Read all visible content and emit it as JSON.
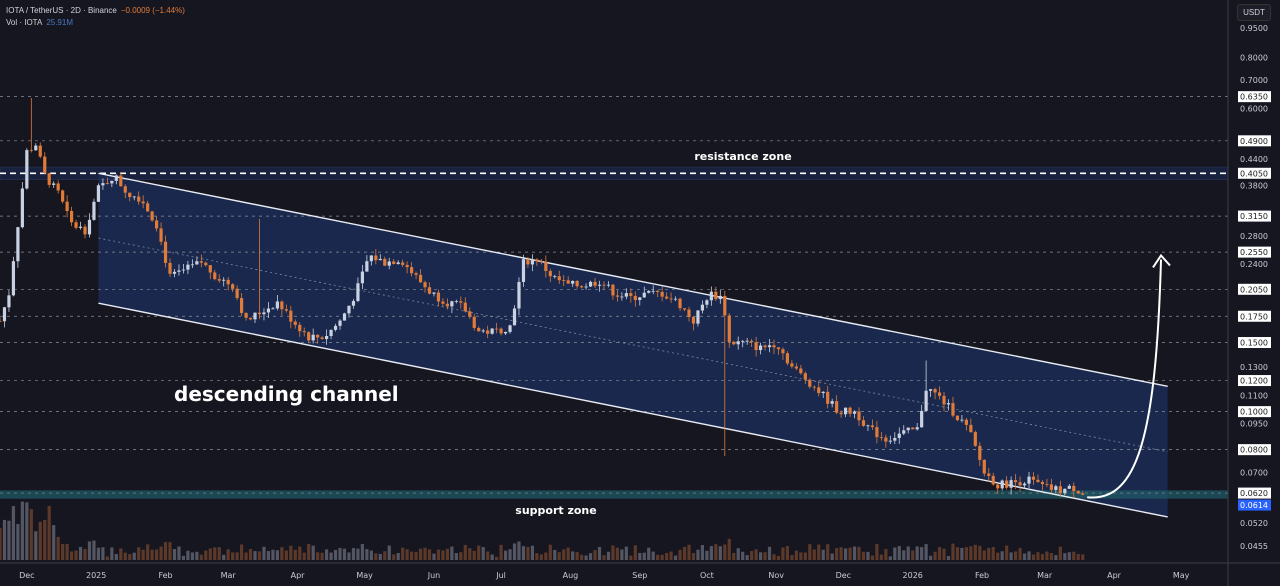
{
  "header": {
    "symbol": "IOTA / TetherUS · 2D · Binance",
    "change": "−0.0009 (−1.44%)",
    "volume_label": "Vol · IOTA",
    "volume_value": "25.91M"
  },
  "currency_button": "USDT",
  "colors": {
    "background": "#161620",
    "up": "#c9d2e3",
    "down": "#e07b39",
    "channel_fill": "#1a2b55",
    "support_fill": "#1f5a66",
    "price_tag": "#2962ff"
  },
  "chart_data": {
    "type": "candlestick",
    "interval": "2D",
    "y_scale": "log",
    "ylim": [
      0.042,
      1.0
    ],
    "y_ticks": [
      "0.9500",
      "0.8000",
      "0.7000",
      "0.6000",
      "0.4400",
      "0.3800",
      "0.2800",
      "0.2400",
      "0.1300",
      "0.1100",
      "0.0950",
      "0.0700",
      "0.0520",
      "0.0455"
    ],
    "level_tags": [
      "0.6350",
      "0.4900",
      "0.4050",
      "0.3150",
      "0.2550",
      "0.2050",
      "0.1750",
      "0.1500",
      "0.1200",
      "0.1000",
      "0.0800",
      "0.0620"
    ],
    "last_price": "0.0614",
    "x_ticks": [
      {
        "label": "Dec",
        "date": "2024-12-01"
      },
      {
        "label": "2025",
        "date": "2025-01-01"
      },
      {
        "label": "Feb",
        "date": "2025-02-01"
      },
      {
        "label": "Mar",
        "date": "2025-03-01"
      },
      {
        "label": "Apr",
        "date": "2025-04-01"
      },
      {
        "label": "May",
        "date": "2025-05-01"
      },
      {
        "label": "Jun",
        "date": "2025-06-01"
      },
      {
        "label": "Jul",
        "date": "2025-07-01"
      },
      {
        "label": "Aug",
        "date": "2025-08-01"
      },
      {
        "label": "Sep",
        "date": "2025-09-01"
      },
      {
        "label": "Oct",
        "date": "2025-10-01"
      },
      {
        "label": "Nov",
        "date": "2025-11-01"
      },
      {
        "label": "Dec",
        "date": "2025-12-01"
      },
      {
        "label": "2026",
        "date": "2026-01-01"
      },
      {
        "label": "Feb",
        "date": "2026-02-01"
      },
      {
        "label": "Mar",
        "date": "2026-03-01"
      },
      {
        "label": "Apr",
        "date": "2026-04-01"
      },
      {
        "label": "May",
        "date": "2026-05-01"
      }
    ],
    "close_path": [
      [
        "2024-11-19",
        0.17
      ],
      [
        "2024-11-23",
        0.2
      ],
      [
        "2024-11-27",
        0.3
      ],
      [
        "2024-12-01",
        0.46
      ],
      [
        "2024-12-05",
        0.48
      ],
      [
        "2024-12-09",
        0.4
      ],
      [
        "2024-12-15",
        0.36
      ],
      [
        "2024-12-21",
        0.3
      ],
      [
        "2024-12-27",
        0.29
      ],
      [
        "2025-01-02",
        0.37
      ],
      [
        "2025-01-09",
        0.4
      ],
      [
        "2025-01-15",
        0.36
      ],
      [
        "2025-01-21",
        0.35
      ],
      [
        "2025-01-28",
        0.3
      ],
      [
        "2025-02-03",
        0.22
      ],
      [
        "2025-02-10",
        0.23
      ],
      [
        "2025-02-17",
        0.24
      ],
      [
        "2025-02-24",
        0.22
      ],
      [
        "2025-03-03",
        0.21
      ],
      [
        "2025-03-09",
        0.17
      ],
      [
        "2025-03-16",
        0.18
      ],
      [
        "2025-03-23",
        0.19
      ],
      [
        "2025-03-30",
        0.17
      ],
      [
        "2025-04-06",
        0.155
      ],
      [
        "2025-04-13",
        0.155
      ],
      [
        "2025-04-20",
        0.17
      ],
      [
        "2025-04-27",
        0.2
      ],
      [
        "2025-05-03",
        0.25
      ],
      [
        "2025-05-10",
        0.24
      ],
      [
        "2025-05-17",
        0.245
      ],
      [
        "2025-05-24",
        0.22
      ],
      [
        "2025-05-31",
        0.2
      ],
      [
        "2025-06-07",
        0.19
      ],
      [
        "2025-06-14",
        0.185
      ],
      [
        "2025-06-21",
        0.16
      ],
      [
        "2025-06-28",
        0.16
      ],
      [
        "2025-07-05",
        0.165
      ],
      [
        "2025-07-11",
        0.24
      ],
      [
        "2025-07-17",
        0.245
      ],
      [
        "2025-07-24",
        0.22
      ],
      [
        "2025-07-31",
        0.21
      ],
      [
        "2025-08-07",
        0.21
      ],
      [
        "2025-08-14",
        0.215
      ],
      [
        "2025-08-21",
        0.2
      ],
      [
        "2025-08-28",
        0.195
      ],
      [
        "2025-09-04",
        0.2
      ],
      [
        "2025-09-11",
        0.2
      ],
      [
        "2025-09-18",
        0.19
      ],
      [
        "2025-09-25",
        0.17
      ],
      [
        "2025-10-02",
        0.2
      ],
      [
        "2025-10-08",
        0.195
      ],
      [
        "2025-10-11",
        0.15
      ],
      [
        "2025-10-18",
        0.15
      ],
      [
        "2025-10-25",
        0.145
      ],
      [
        "2025-11-01",
        0.15
      ],
      [
        "2025-11-08",
        0.13
      ],
      [
        "2025-11-15",
        0.12
      ],
      [
        "2025-11-22",
        0.11
      ],
      [
        "2025-11-29",
        0.1
      ],
      [
        "2025-12-06",
        0.1
      ],
      [
        "2025-12-13",
        0.09
      ],
      [
        "2025-12-20",
        0.085
      ],
      [
        "2025-12-27",
        0.088
      ],
      [
        "2026-01-03",
        0.09
      ],
      [
        "2026-01-07",
        0.115
      ],
      [
        "2026-01-12",
        0.11
      ],
      [
        "2026-01-19",
        0.1
      ],
      [
        "2026-01-26",
        0.09
      ],
      [
        "2026-02-02",
        0.07
      ],
      [
        "2026-02-08",
        0.065
      ],
      [
        "2026-02-15",
        0.066
      ],
      [
        "2026-02-22",
        0.067
      ],
      [
        "2026-03-01",
        0.064
      ],
      [
        "2026-03-08",
        0.063
      ],
      [
        "2026-03-15",
        0.064
      ],
      [
        "2026-03-18",
        0.0614
      ]
    ],
    "notable_wicks": [
      [
        "2024-12-03",
        0.63
      ],
      [
        "2025-03-15",
        0.31
      ],
      [
        "2025-10-10",
        0.077
      ],
      [
        "2026-01-08",
        0.135
      ]
    ],
    "channel": {
      "upper": [
        [
          "2025-01-02",
          0.405
        ],
        [
          "2026-04-25",
          0.116
        ]
      ],
      "lower": [
        [
          "2025-01-02",
          0.189
        ],
        [
          "2026-04-25",
          0.0539
        ]
      ],
      "mid": [
        [
          "2025-01-02",
          0.277
        ],
        [
          "2026-04-25",
          0.079
        ]
      ]
    },
    "zones": {
      "resistance": [
        0.39,
        0.42
      ],
      "support": [
        0.06,
        0.063
      ]
    },
    "projection_arrow": [
      [
        "2026-03-20",
        0.0605
      ],
      [
        "2026-04-22",
        0.25
      ]
    ],
    "annotations": {
      "channel": "descending channel",
      "resistance": "resistance zone",
      "support": "support zone"
    }
  }
}
